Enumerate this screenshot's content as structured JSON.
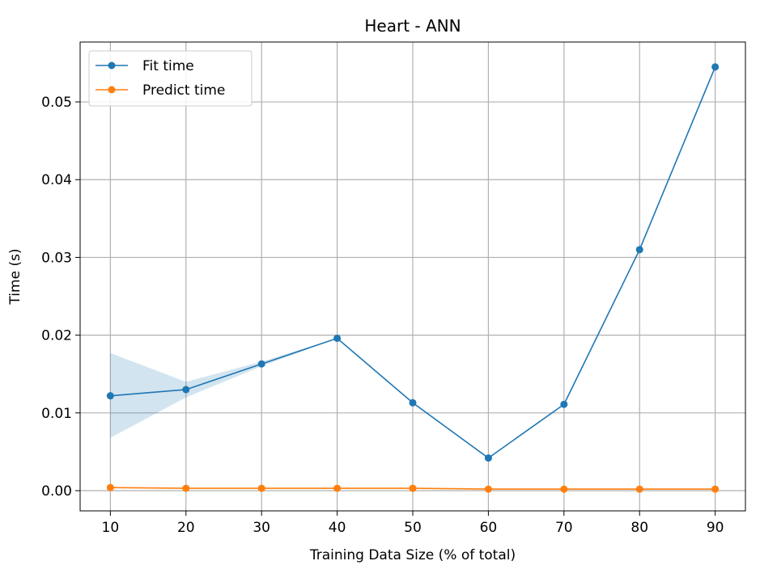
{
  "chart_data": {
    "type": "line",
    "title": "Heart - ANN",
    "xlabel": "Training Data Size (% of total)",
    "ylabel": "Time (s)",
    "x": [
      10,
      20,
      30,
      40,
      50,
      60,
      70,
      80,
      90
    ],
    "xticks": [
      "10",
      "20",
      "30",
      "40",
      "50",
      "60",
      "70",
      "80",
      "90"
    ],
    "yticks": [
      {
        "value": 0.0,
        "label": "0.00"
      },
      {
        "value": 0.01,
        "label": "0.01"
      },
      {
        "value": 0.02,
        "label": "0.02"
      },
      {
        "value": 0.03,
        "label": "0.03"
      },
      {
        "value": 0.04,
        "label": "0.04"
      },
      {
        "value": 0.05,
        "label": "0.05"
      }
    ],
    "xlim": [
      6,
      94
    ],
    "ylim": [
      -0.0026,
      0.0577
    ],
    "grid": true,
    "legend_position": "top-left",
    "series": [
      {
        "name": "Fit time",
        "color": "#1f77b4",
        "values": [
          0.0122,
          0.013,
          0.0163,
          0.0196,
          0.0113,
          0.0042,
          0.0111,
          0.031,
          0.0545
        ],
        "band_lower": [
          0.0068,
          0.012,
          0.016,
          0.0196,
          0.0113,
          0.0042,
          0.0111,
          0.031,
          0.0545
        ],
        "band_upper": [
          0.0177,
          0.014,
          0.0166,
          0.0196,
          0.0113,
          0.0042,
          0.0111,
          0.031,
          0.0545
        ],
        "band_color": "#1f77b4"
      },
      {
        "name": "Predict time",
        "color": "#ff7f0e",
        "values": [
          0.0004,
          0.0003,
          0.0003,
          0.0003,
          0.0003,
          0.0002,
          0.0002,
          0.0002,
          0.0002
        ]
      }
    ]
  }
}
